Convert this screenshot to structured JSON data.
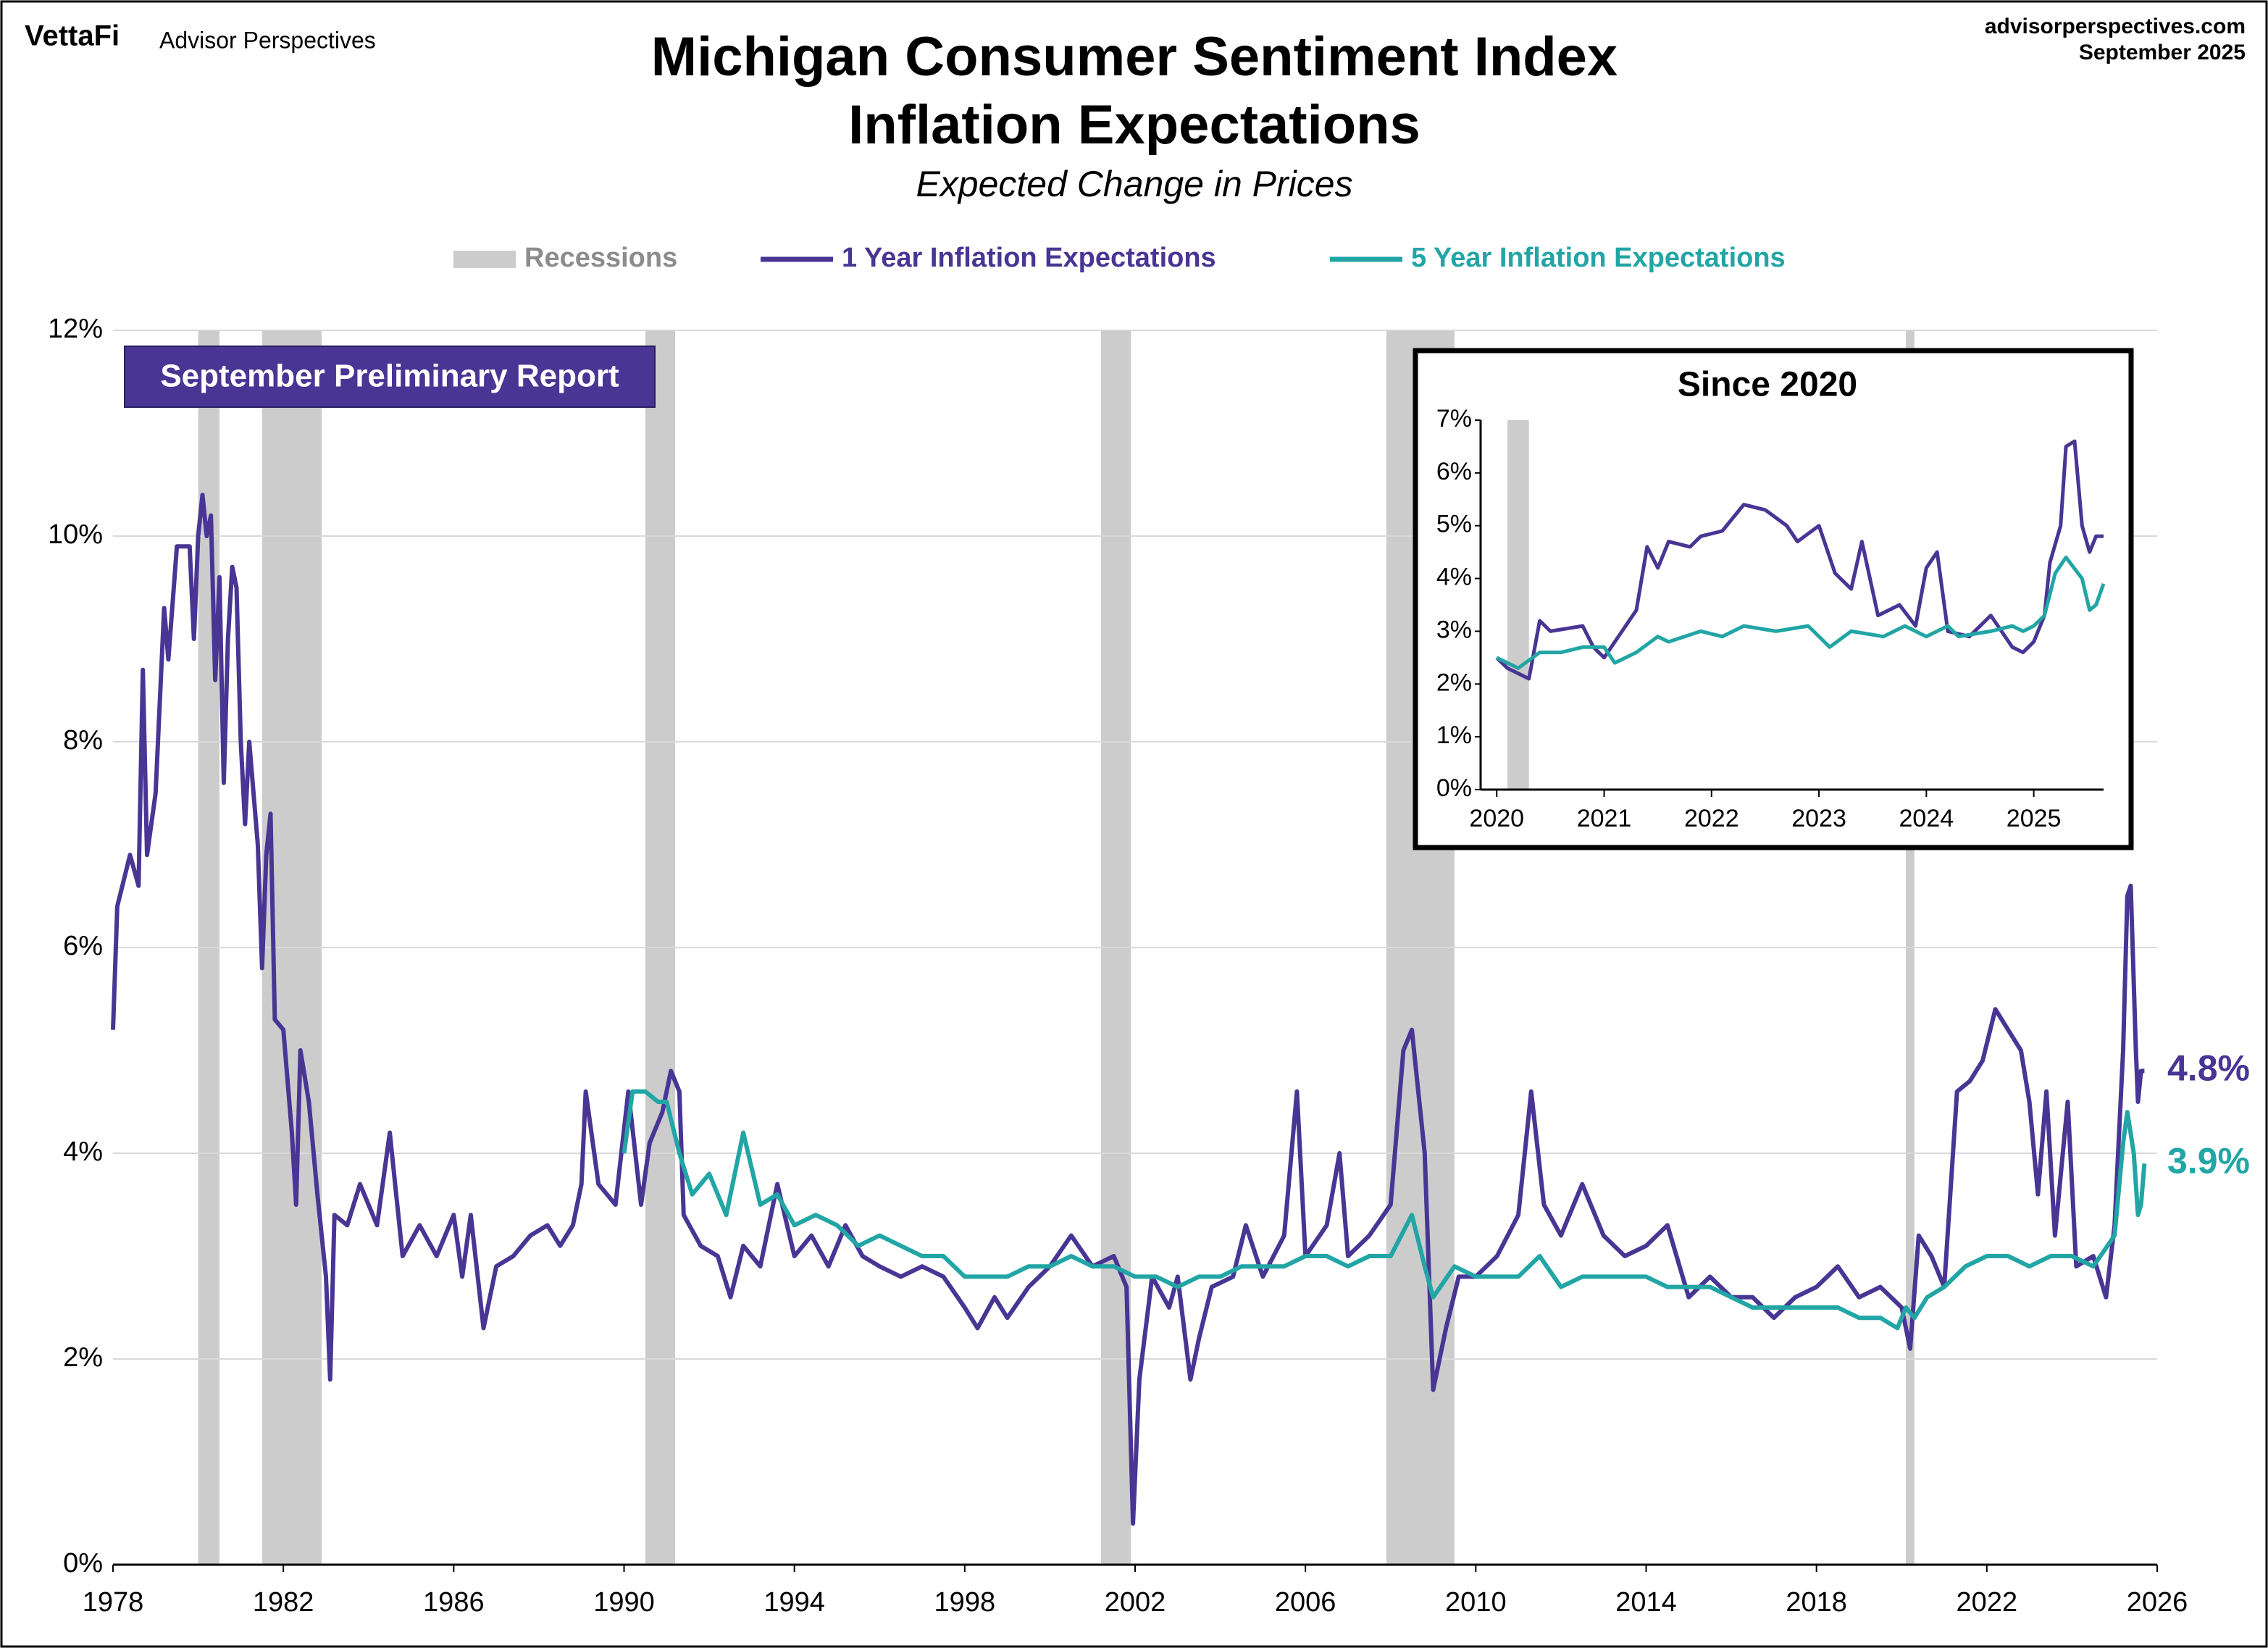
{
  "header": {
    "brand": "VettaFi",
    "publisher": "Advisor Perspectives",
    "website": "advisorperspectives.com",
    "date": "September 2025"
  },
  "chart_data": [
    {
      "type": "line",
      "title": [
        "Michigan Consumer Sentiment Index",
        "Inflation Expectations"
      ],
      "subtitle": "Expected Change in Prices",
      "annotation": "September Preliminary Report",
      "xlim": [
        1978,
        2026
      ],
      "xticks": [
        1978,
        1982,
        1986,
        1990,
        1994,
        1998,
        2002,
        2006,
        2010,
        2014,
        2018,
        2022,
        2026
      ],
      "ylim": [
        0,
        12
      ],
      "yticks": [
        {
          "value": 0,
          "label": "0%"
        },
        {
          "value": 2,
          "label": "2%"
        },
        {
          "value": 4,
          "label": "4%"
        },
        {
          "value": 6,
          "label": "6%"
        },
        {
          "value": 8,
          "label": "8%"
        },
        {
          "value": 10,
          "label": "10%"
        },
        {
          "value": 12,
          "label": "12%"
        }
      ],
      "grid": true,
      "recessions": {
        "name": "Recessions",
        "color": "#cccccc",
        "spans": [
          [
            1980.0,
            1980.5
          ],
          [
            1981.5,
            1982.9
          ],
          [
            1990.5,
            1991.2
          ],
          [
            2001.2,
            2001.9
          ],
          [
            2007.9,
            2009.5
          ],
          [
            2020.1,
            2020.3
          ]
        ]
      },
      "series": [
        {
          "name": "1 Year Inflation Expectations",
          "color": "#483594",
          "end_label": "4.8%",
          "x": [
            1978.0,
            1978.1,
            1978.4,
            1978.6,
            1978.7,
            1978.8,
            1979.0,
            1979.2,
            1979.3,
            1979.5,
            1979.8,
            1979.9,
            1980.0,
            1980.1,
            1980.2,
            1980.3,
            1980.4,
            1980.5,
            1980.6,
            1980.7,
            1980.8,
            1980.9,
            1981.0,
            1981.1,
            1981.2,
            1981.4,
            1981.5,
            1981.6,
            1981.7,
            1981.8,
            1982.0,
            1982.2,
            1982.3,
            1982.4,
            1982.6,
            1982.8,
            1983.0,
            1983.1,
            1983.2,
            1983.5,
            1983.8,
            1984.2,
            1984.5,
            1984.8,
            1985.2,
            1985.6,
            1986.0,
            1986.2,
            1986.4,
            1986.7,
            1987.0,
            1987.4,
            1987.8,
            1988.2,
            1988.5,
            1988.8,
            1989.0,
            1989.1,
            1989.4,
            1989.8,
            1990.1,
            1990.4,
            1990.6,
            1990.9,
            1991.1,
            1991.3,
            1991.4,
            1991.8,
            1992.2,
            1992.5,
            1992.8,
            1993.2,
            1993.6,
            1994.0,
            1994.4,
            1994.8,
            1995.2,
            1995.6,
            1996.0,
            1996.5,
            1997.0,
            1997.5,
            1998.0,
            1998.3,
            1998.7,
            1999.0,
            1999.5,
            2000.0,
            2000.5,
            2001.0,
            2001.5,
            2001.8,
            2001.95,
            2002.1,
            2002.4,
            2002.8,
            2003.0,
            2003.3,
            2003.5,
            2003.8,
            2004.3,
            2004.6,
            2005.0,
            2005.5,
            2005.8,
            2006.0,
            2006.5,
            2006.8,
            2007.0,
            2007.5,
            2008.0,
            2008.3,
            2008.5,
            2008.8,
            2009.0,
            2009.3,
            2009.6,
            2010.0,
            2010.5,
            2011.0,
            2011.3,
            2011.6,
            2012.0,
            2012.5,
            2013.0,
            2013.5,
            2014.0,
            2014.5,
            2015.0,
            2015.5,
            2016.0,
            2016.5,
            2017.0,
            2017.5,
            2018.0,
            2018.5,
            2019.0,
            2019.5,
            2020.0,
            2020.2,
            2020.4,
            2020.7,
            2021.0,
            2021.3,
            2021.6,
            2021.9,
            2022.2,
            2022.5,
            2022.8,
            2023.0,
            2023.2,
            2023.4,
            2023.6,
            2023.9,
            2024.1,
            2024.5,
            2024.8,
            2025.0,
            2025.2,
            2025.3,
            2025.38,
            2025.5,
            2025.55,
            2025.62,
            2025.7
          ],
          "values": [
            5.2,
            6.4,
            6.9,
            6.6,
            8.7,
            6.9,
            7.5,
            9.3,
            8.8,
            9.9,
            9.9,
            9.0,
            10.0,
            10.4,
            10.0,
            10.2,
            8.6,
            9.6,
            7.6,
            9.0,
            9.7,
            9.5,
            8.0,
            7.2,
            8.0,
            7.0,
            5.8,
            6.9,
            7.3,
            5.3,
            5.2,
            4.2,
            3.5,
            5.0,
            4.5,
            3.6,
            2.8,
            1.8,
            3.4,
            3.3,
            3.7,
            3.3,
            4.2,
            3.0,
            3.3,
            3.0,
            3.4,
            2.8,
            3.4,
            2.3,
            2.9,
            3.0,
            3.2,
            3.3,
            3.1,
            3.3,
            3.7,
            4.6,
            3.7,
            3.5,
            4.6,
            3.5,
            4.1,
            4.4,
            4.8,
            4.6,
            3.4,
            3.1,
            3.0,
            2.6,
            3.1,
            2.9,
            3.7,
            3.0,
            3.2,
            2.9,
            3.3,
            3.0,
            2.9,
            2.8,
            2.9,
            2.8,
            2.5,
            2.3,
            2.6,
            2.4,
            2.7,
            2.9,
            3.2,
            2.9,
            3.0,
            2.7,
            0.4,
            1.8,
            2.8,
            2.5,
            2.8,
            1.8,
            2.2,
            2.7,
            2.8,
            3.3,
            2.8,
            3.2,
            4.6,
            3.0,
            3.3,
            4.0,
            3.0,
            3.2,
            3.5,
            5.0,
            5.2,
            4.0,
            1.7,
            2.3,
            2.8,
            2.8,
            3.0,
            3.4,
            4.6,
            3.5,
            3.2,
            3.7,
            3.2,
            3.0,
            3.1,
            3.3,
            2.6,
            2.8,
            2.6,
            2.6,
            2.4,
            2.6,
            2.7,
            2.9,
            2.6,
            2.7,
            2.5,
            2.1,
            3.2,
            3.0,
            2.7,
            4.6,
            4.7,
            4.9,
            5.4,
            5.2,
            5.0,
            4.5,
            3.6,
            4.6,
            3.2,
            4.5,
            2.9,
            3.0,
            2.6,
            3.3,
            5.0,
            6.5,
            6.6,
            5.0,
            4.5,
            4.8,
            4.8
          ]
        },
        {
          "name": "5 Year Inflation Expectations",
          "color": "#22a5a5",
          "end_label": "3.9%",
          "x": [
            1990.0,
            1990.2,
            1990.5,
            1990.8,
            1991.0,
            1991.3,
            1991.6,
            1992.0,
            1992.4,
            1992.8,
            1993.2,
            1993.6,
            1994.0,
            1994.5,
            1995.0,
            1995.5,
            1996.0,
            1996.5,
            1997.0,
            1997.5,
            1998.0,
            1998.5,
            1999.0,
            1999.5,
            2000.0,
            2000.5,
            2001.0,
            2001.5,
            2002.0,
            2002.5,
            2003.0,
            2003.5,
            2004.0,
            2004.5,
            2005.0,
            2005.5,
            2006.0,
            2006.5,
            2007.0,
            2007.5,
            2008.0,
            2008.5,
            2008.8,
            2009.0,
            2009.5,
            2010.0,
            2010.5,
            2011.0,
            2011.5,
            2012.0,
            2012.5,
            2013.0,
            2013.5,
            2014.0,
            2014.5,
            2015.0,
            2015.5,
            2016.0,
            2016.5,
            2017.0,
            2017.5,
            2018.0,
            2018.5,
            2019.0,
            2019.5,
            2019.9,
            2020.1,
            2020.3,
            2020.6,
            2021.0,
            2021.5,
            2022.0,
            2022.5,
            2023.0,
            2023.5,
            2024.0,
            2024.5,
            2025.0,
            2025.2,
            2025.3,
            2025.45,
            2025.55,
            2025.62,
            2025.7
          ],
          "values": [
            4.0,
            4.6,
            4.6,
            4.5,
            4.5,
            4.0,
            3.6,
            3.8,
            3.4,
            4.2,
            3.5,
            3.6,
            3.3,
            3.4,
            3.3,
            3.1,
            3.2,
            3.1,
            3.0,
            3.0,
            2.8,
            2.8,
            2.8,
            2.9,
            2.9,
            3.0,
            2.9,
            2.9,
            2.8,
            2.8,
            2.7,
            2.8,
            2.8,
            2.9,
            2.9,
            2.9,
            3.0,
            3.0,
            2.9,
            3.0,
            3.0,
            3.4,
            2.9,
            2.6,
            2.9,
            2.8,
            2.8,
            2.8,
            3.0,
            2.7,
            2.8,
            2.8,
            2.8,
            2.8,
            2.7,
            2.7,
            2.7,
            2.6,
            2.5,
            2.5,
            2.5,
            2.5,
            2.5,
            2.4,
            2.4,
            2.3,
            2.5,
            2.4,
            2.6,
            2.7,
            2.9,
            3.0,
            3.0,
            2.9,
            3.0,
            3.0,
            2.9,
            3.2,
            4.1,
            4.4,
            4.0,
            3.4,
            3.5,
            3.9
          ]
        }
      ]
    },
    {
      "type": "line",
      "title": "Since 2020",
      "xlim": [
        2019.85,
        2025.65
      ],
      "xticks": [
        2020,
        2021,
        2022,
        2023,
        2024,
        2025
      ],
      "ylim": [
        0,
        7
      ],
      "yticks": [
        {
          "value": 0,
          "label": "0%"
        },
        {
          "value": 1,
          "label": "1%"
        },
        {
          "value": 2,
          "label": "2%"
        },
        {
          "value": 3,
          "label": "3%"
        },
        {
          "value": 4,
          "label": "4%"
        },
        {
          "value": 5,
          "label": "5%"
        },
        {
          "value": 6,
          "label": "6%"
        },
        {
          "value": 7,
          "label": "7%"
        }
      ],
      "grid": false,
      "recessions": {
        "color": "#cccccc",
        "spans": [
          [
            2020.1,
            2020.3
          ]
        ]
      },
      "series": [
        {
          "color": "#483594",
          "x": [
            2020.0,
            2020.1,
            2020.3,
            2020.4,
            2020.5,
            2020.8,
            2020.9,
            2021.0,
            2021.1,
            2021.3,
            2021.4,
            2021.5,
            2021.6,
            2021.8,
            2021.9,
            2022.1,
            2022.3,
            2022.5,
            2022.7,
            2022.8,
            2023.0,
            2023.15,
            2023.3,
            2023.4,
            2023.55,
            2023.75,
            2023.9,
            2024.0,
            2024.1,
            2024.2,
            2024.4,
            2024.6,
            2024.8,
            2024.9,
            2025.0,
            2025.1,
            2025.15,
            2025.25,
            2025.3,
            2025.38,
            2025.45,
            2025.52,
            2025.58,
            2025.65
          ],
          "values": [
            2.5,
            2.3,
            2.1,
            3.2,
            3.0,
            3.1,
            2.7,
            2.5,
            2.8,
            3.4,
            4.6,
            4.2,
            4.7,
            4.6,
            4.8,
            4.9,
            5.4,
            5.3,
            5.0,
            4.7,
            5.0,
            4.1,
            3.8,
            4.7,
            3.3,
            3.5,
            3.1,
            4.2,
            4.5,
            3.0,
            2.9,
            3.3,
            2.7,
            2.6,
            2.8,
            3.3,
            4.3,
            5.0,
            6.5,
            6.6,
            5.0,
            4.5,
            4.8,
            4.8
          ]
        },
        {
          "color": "#22a5a5",
          "x": [
            2020.0,
            2020.2,
            2020.4,
            2020.6,
            2020.8,
            2021.0,
            2021.1,
            2021.3,
            2021.5,
            2021.6,
            2021.9,
            2022.1,
            2022.3,
            2022.6,
            2022.9,
            2023.0,
            2023.1,
            2023.3,
            2023.6,
            2023.8,
            2024.0,
            2024.2,
            2024.3,
            2024.6,
            2024.8,
            2024.9,
            2025.0,
            2025.1,
            2025.2,
            2025.3,
            2025.45,
            2025.52,
            2025.58,
            2025.65
          ],
          "values": [
            2.5,
            2.3,
            2.6,
            2.6,
            2.7,
            2.7,
            2.4,
            2.6,
            2.9,
            2.8,
            3.0,
            2.9,
            3.1,
            3.0,
            3.1,
            2.9,
            2.7,
            3.0,
            2.9,
            3.1,
            2.9,
            3.1,
            2.9,
            3.0,
            3.1,
            3.0,
            3.1,
            3.3,
            4.1,
            4.4,
            4.0,
            3.4,
            3.5,
            3.9
          ]
        }
      ]
    }
  ]
}
